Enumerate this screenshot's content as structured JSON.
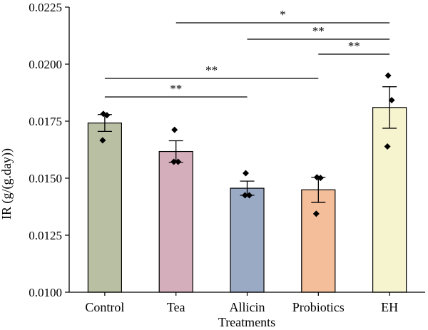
{
  "chart_data": {
    "type": "bar",
    "xlabel": "Treatments",
    "ylabel": "IR (g/(g.day))",
    "ylim": [
      0.01,
      0.0225
    ],
    "yticks": [
      "0.0100",
      "0.0125",
      "0.0150",
      "0.0175",
      "0.0200",
      "0.0225"
    ],
    "grid": false,
    "categories": [
      "Control",
      "Tea",
      "Allicin",
      "Probiotics",
      "EH"
    ],
    "values": [
      0.01742,
      0.01617,
      0.01456,
      0.01449,
      0.0181
    ],
    "errors": [
      0.00037,
      0.00047,
      0.00031,
      0.00055,
      0.00091
    ],
    "points": [
      [
        0.01782,
        0.01776,
        0.01666
      ],
      [
        0.01712,
        0.01572,
        0.01572
      ],
      [
        0.01522,
        0.01425,
        0.01425
      ],
      [
        0.01504,
        0.01501,
        0.01344
      ],
      [
        0.0195,
        0.01842,
        0.01639
      ]
    ],
    "colors": [
      "#b9bfa3",
      "#d4aebb",
      "#9aa9c4",
      "#f4be9a",
      "#f6f4cf"
    ],
    "significance": [
      {
        "from": 1,
        "to": 4,
        "label": "*"
      },
      {
        "from": 2,
        "to": 4,
        "label": "**"
      },
      {
        "from": 3,
        "to": 4,
        "label": "**"
      },
      {
        "from": 0,
        "to": 3,
        "label": "**"
      },
      {
        "from": 0,
        "to": 2,
        "label": "**"
      }
    ]
  }
}
